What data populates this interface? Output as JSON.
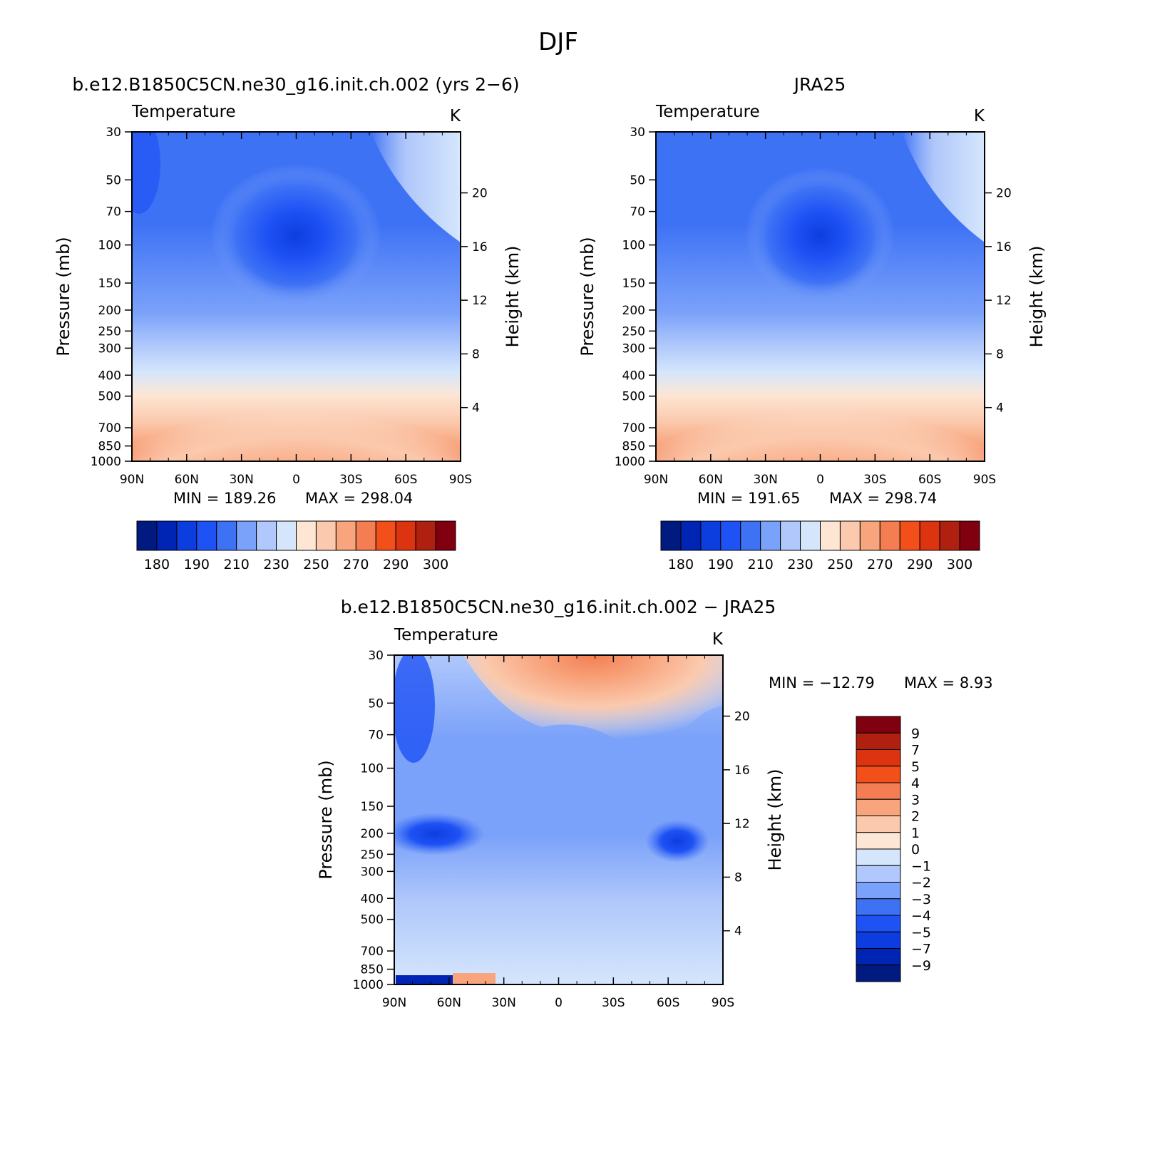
{
  "figure": {
    "title": "DJF"
  },
  "chart_data": [
    {
      "type": "contour",
      "title": "b.e12.B1850C5CN.ne30_g16.init.ch.002 (yrs 2−6)",
      "variable": "Temperature",
      "units": "K",
      "ylabel": "Pressure (mb)",
      "ylabel_right": "Height (km)",
      "x_ticks": [
        "90N",
        "60N",
        "30N",
        "0",
        "30S",
        "60S",
        "90S"
      ],
      "x_values": [
        90,
        60,
        30,
        0,
        -30,
        -60,
        -90
      ],
      "y_ticks": [
        "30",
        "50",
        "70",
        "100",
        "150",
        "200",
        "250",
        "300",
        "400",
        "500",
        "700",
        "850",
        "1000"
      ],
      "y_values": [
        30,
        50,
        70,
        100,
        150,
        200,
        250,
        300,
        400,
        500,
        700,
        850,
        1000
      ],
      "y_right_ticks": [
        "20",
        "16",
        "12",
        "8",
        "4"
      ],
      "y_right_values": [
        20,
        16,
        12,
        8,
        4
      ],
      "log_scale_y": true,
      "min_label": "MIN = 189.26",
      "max_label": "MAX = 298.04",
      "min": 189.26,
      "max": 298.04,
      "colorbar": {
        "orientation": "horizontal",
        "labels": [
          "180",
          "190",
          "210",
          "230",
          "250",
          "270",
          "290",
          "300"
        ],
        "colors": [
          "#001a80",
          "#0024b3",
          "#0c3ddf",
          "#1f52f5",
          "#3e72f5",
          "#7ba2fa",
          "#b0c8fb",
          "#d5e6fc",
          "#fde6d4",
          "#fbc9ad",
          "#f8a47c",
          "#f47e52",
          "#f34f1a",
          "#dc3310",
          "#b02010",
          "#800010"
        ]
      }
    },
    {
      "type": "contour",
      "title": "JRA25",
      "variable": "Temperature",
      "units": "K",
      "ylabel": "Pressure (mb)",
      "ylabel_right": "Height (km)",
      "x_ticks": [
        "90N",
        "60N",
        "30N",
        "0",
        "30S",
        "60S",
        "90S"
      ],
      "x_values": [
        90,
        60,
        30,
        0,
        -30,
        -60,
        -90
      ],
      "y_ticks": [
        "30",
        "50",
        "70",
        "100",
        "150",
        "200",
        "250",
        "300",
        "400",
        "500",
        "700",
        "850",
        "1000"
      ],
      "y_values": [
        30,
        50,
        70,
        100,
        150,
        200,
        250,
        300,
        400,
        500,
        700,
        850,
        1000
      ],
      "y_right_ticks": [
        "20",
        "16",
        "12",
        "8",
        "4"
      ],
      "y_right_values": [
        20,
        16,
        12,
        8,
        4
      ],
      "log_scale_y": true,
      "min_label": "MIN = 191.65",
      "max_label": "MAX = 298.74",
      "min": 191.65,
      "max": 298.74,
      "colorbar": {
        "orientation": "horizontal",
        "labels": [
          "180",
          "190",
          "210",
          "230",
          "250",
          "270",
          "290",
          "300"
        ],
        "colors": [
          "#001a80",
          "#0024b3",
          "#0c3ddf",
          "#1f52f5",
          "#3e72f5",
          "#7ba2fa",
          "#b0c8fb",
          "#d5e6fc",
          "#fde6d4",
          "#fbc9ad",
          "#f8a47c",
          "#f47e52",
          "#f34f1a",
          "#dc3310",
          "#b02010",
          "#800010"
        ]
      }
    },
    {
      "type": "contour",
      "title": "b.e12.B1850C5CN.ne30_g16.init.ch.002 − JRA25",
      "variable": "Temperature",
      "units": "K",
      "ylabel": "Pressure (mb)",
      "ylabel_right": "Height (km)",
      "x_ticks": [
        "90N",
        "60N",
        "30N",
        "0",
        "30S",
        "60S",
        "90S"
      ],
      "x_values": [
        90,
        60,
        30,
        0,
        -30,
        -60,
        -90
      ],
      "y_ticks": [
        "30",
        "50",
        "70",
        "100",
        "150",
        "200",
        "250",
        "300",
        "400",
        "500",
        "700",
        "850",
        "1000"
      ],
      "y_values": [
        30,
        50,
        70,
        100,
        150,
        200,
        250,
        300,
        400,
        500,
        700,
        850,
        1000
      ],
      "y_right_ticks": [
        "20",
        "16",
        "12",
        "8",
        "4"
      ],
      "y_right_values": [
        20,
        16,
        12,
        8,
        4
      ],
      "log_scale_y": true,
      "min_label": "MIN = −12.79",
      "max_label": "MAX = 8.93",
      "min": -12.79,
      "max": 8.93,
      "colorbar": {
        "orientation": "vertical",
        "labels": [
          "9",
          "7",
          "5",
          "4",
          "3",
          "2",
          "1",
          "0",
          "−1",
          "−2",
          "−3",
          "−4",
          "−5",
          "−7",
          "−9"
        ],
        "colors": [
          "#800010",
          "#b02010",
          "#dc3310",
          "#f34f1a",
          "#f47e52",
          "#f8a47c",
          "#fbc9ad",
          "#fde6d4",
          "#d5e6fc",
          "#b0c8fb",
          "#7ba2fa",
          "#3e72f5",
          "#1f52f5",
          "#0c3ddf",
          "#0024b3",
          "#001a80"
        ]
      }
    }
  ]
}
